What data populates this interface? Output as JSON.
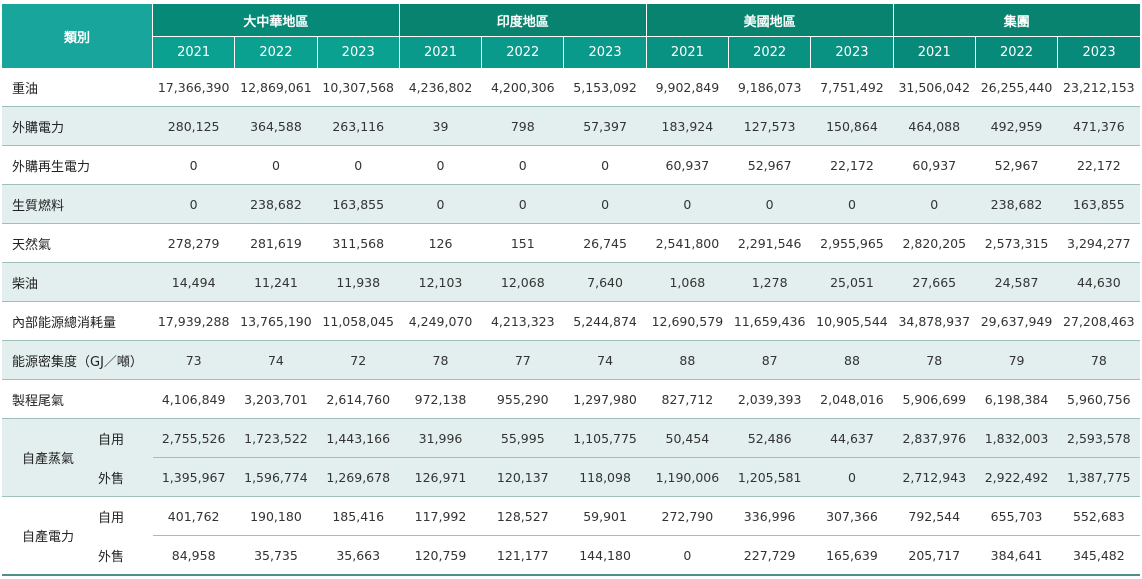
{
  "header": {
    "category_label": "類別",
    "regions": [
      "大中華地區",
      "印度地區",
      "美國地區",
      "集團"
    ],
    "years": [
      "2021",
      "2022",
      "2023"
    ]
  },
  "rows": [
    {
      "label": "重油",
      "shade": false,
      "values": [
        "17,366,390",
        "12,869,061",
        "10,307,568",
        "4,236,802",
        "4,200,306",
        "5,153,092",
        "9,902,849",
        "9,186,073",
        "7,751,492",
        "31,506,042",
        "26,255,440",
        "23,212,153"
      ]
    },
    {
      "label": "外購電力",
      "shade": true,
      "values": [
        "280,125",
        "364,588",
        "263,116",
        "39",
        "798",
        "57,397",
        "183,924",
        "127,573",
        "150,864",
        "464,088",
        "492,959",
        "471,376"
      ]
    },
    {
      "label": "外購再生電力",
      "shade": false,
      "values": [
        "0",
        "0",
        "0",
        "0",
        "0",
        "0",
        "60,937",
        "52,967",
        "22,172",
        "60,937",
        "52,967",
        "22,172"
      ]
    },
    {
      "label": "生質燃料",
      "shade": true,
      "values": [
        "0",
        "238,682",
        "163,855",
        "0",
        "0",
        "0",
        "0",
        "0",
        "0",
        "0",
        "238,682",
        "163,855"
      ]
    },
    {
      "label": "天然氣",
      "shade": false,
      "values": [
        "278,279",
        "281,619",
        "311,568",
        "126",
        "151",
        "26,745",
        "2,541,800",
        "2,291,546",
        "2,955,965",
        "2,820,205",
        "2,573,315",
        "3,294,277"
      ]
    },
    {
      "label": "柴油",
      "shade": true,
      "values": [
        "14,494",
        "11,241",
        "11,938",
        "12,103",
        "12,068",
        "7,640",
        "1,068",
        "1,278",
        "25,051",
        "27,665",
        "24,587",
        "44,630"
      ]
    },
    {
      "label": "內部能源總消耗量",
      "shade": false,
      "values": [
        "17,939,288",
        "13,765,190",
        "11,058,045",
        "4,249,070",
        "4,213,323",
        "5,244,874",
        "12,690,579",
        "11,659,436",
        "10,905,544",
        "34,878,937",
        "29,637,949",
        "27,208,463"
      ]
    },
    {
      "label": "能源密集度（GJ／噸）",
      "shade": true,
      "values": [
        "73",
        "74",
        "72",
        "78",
        "77",
        "74",
        "88",
        "87",
        "88",
        "78",
        "79",
        "78"
      ]
    },
    {
      "label": "製程尾氣",
      "shade": false,
      "values": [
        "4,106,849",
        "3,203,701",
        "2,614,760",
        "972,138",
        "955,290",
        "1,297,980",
        "827,712",
        "2,039,393",
        "2,048,016",
        "5,906,699",
        "6,198,384",
        "5,960,756"
      ]
    }
  ],
  "groups": [
    {
      "label": "自產蒸氣",
      "shade": true,
      "subrows": [
        {
          "label": "自用",
          "values": [
            "2,755,526",
            "1,723,522",
            "1,443,166",
            "31,996",
            "55,995",
            "1,105,775",
            "50,454",
            "52,486",
            "44,637",
            "2,837,976",
            "1,832,003",
            "2,593,578"
          ]
        },
        {
          "label": "外售",
          "values": [
            "1,395,967",
            "1,596,774",
            "1,269,678",
            "126,971",
            "120,137",
            "118,098",
            "1,190,006",
            "1,205,581",
            "0",
            "2,712,943",
            "2,922,492",
            "1,387,775"
          ]
        }
      ]
    },
    {
      "label": "自產電力",
      "shade": false,
      "subrows": [
        {
          "label": "自用",
          "values": [
            "401,762",
            "190,180",
            "185,416",
            "117,992",
            "128,527",
            "59,901",
            "272,790",
            "336,996",
            "307,366",
            "792,544",
            "655,703",
            "552,683"
          ]
        },
        {
          "label": "外售",
          "values": [
            "84,958",
            "35,735",
            "35,663",
            "120,759",
            "121,177",
            "144,180",
            "0",
            "227,729",
            "165,639",
            "205,717",
            "384,641",
            "345,482"
          ]
        }
      ]
    }
  ]
}
